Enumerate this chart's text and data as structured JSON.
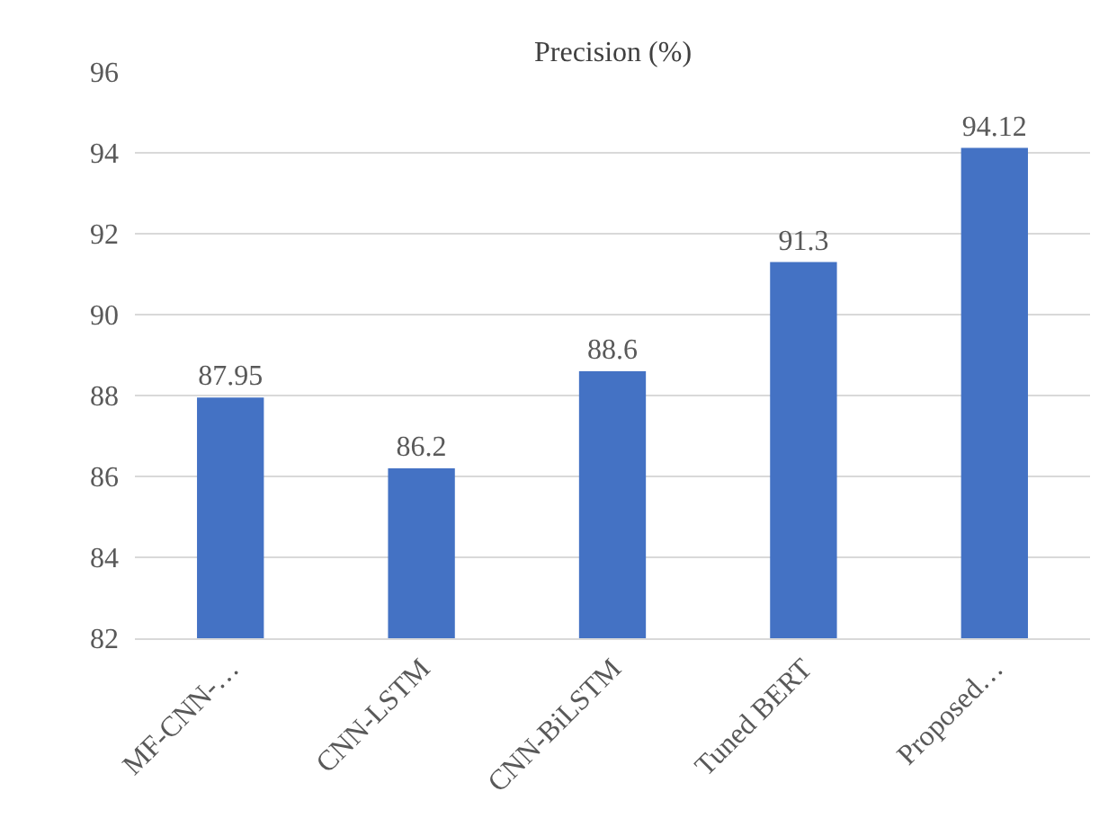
{
  "chart_data": {
    "type": "bar",
    "title": "Precision (%)",
    "categories": [
      "MF-CNN-…",
      "CNN-LSTM",
      "CNN-BiLSTM",
      "Tuned BERT",
      "Proposed…"
    ],
    "values": [
      87.95,
      86.2,
      88.6,
      91.3,
      94.12
    ],
    "color": "#4472c4",
    "ylim": [
      82,
      96
    ],
    "yticks": [
      82,
      84,
      86,
      88,
      90,
      92,
      94,
      96
    ],
    "grid": "y",
    "data_labels": true
  }
}
